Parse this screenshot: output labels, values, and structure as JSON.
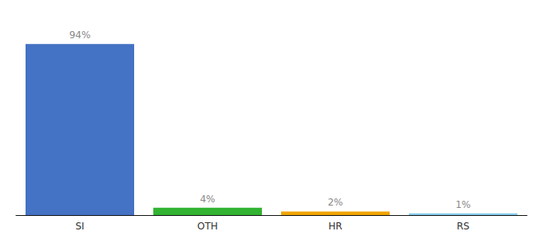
{
  "chart_data": {
    "type": "bar",
    "categories": [
      "SI",
      "OTH",
      "HR",
      "RS"
    ],
    "values": [
      94,
      4,
      2,
      1
    ],
    "value_labels": [
      "94%",
      "4%",
      "2%",
      "1%"
    ],
    "data_labels": true,
    "colors": [
      "#4472c4",
      "#32b332",
      "#f0a500",
      "#87ceeb"
    ],
    "ylim": [
      0,
      105
    ],
    "tick_labels": "x",
    "grid": false
  }
}
